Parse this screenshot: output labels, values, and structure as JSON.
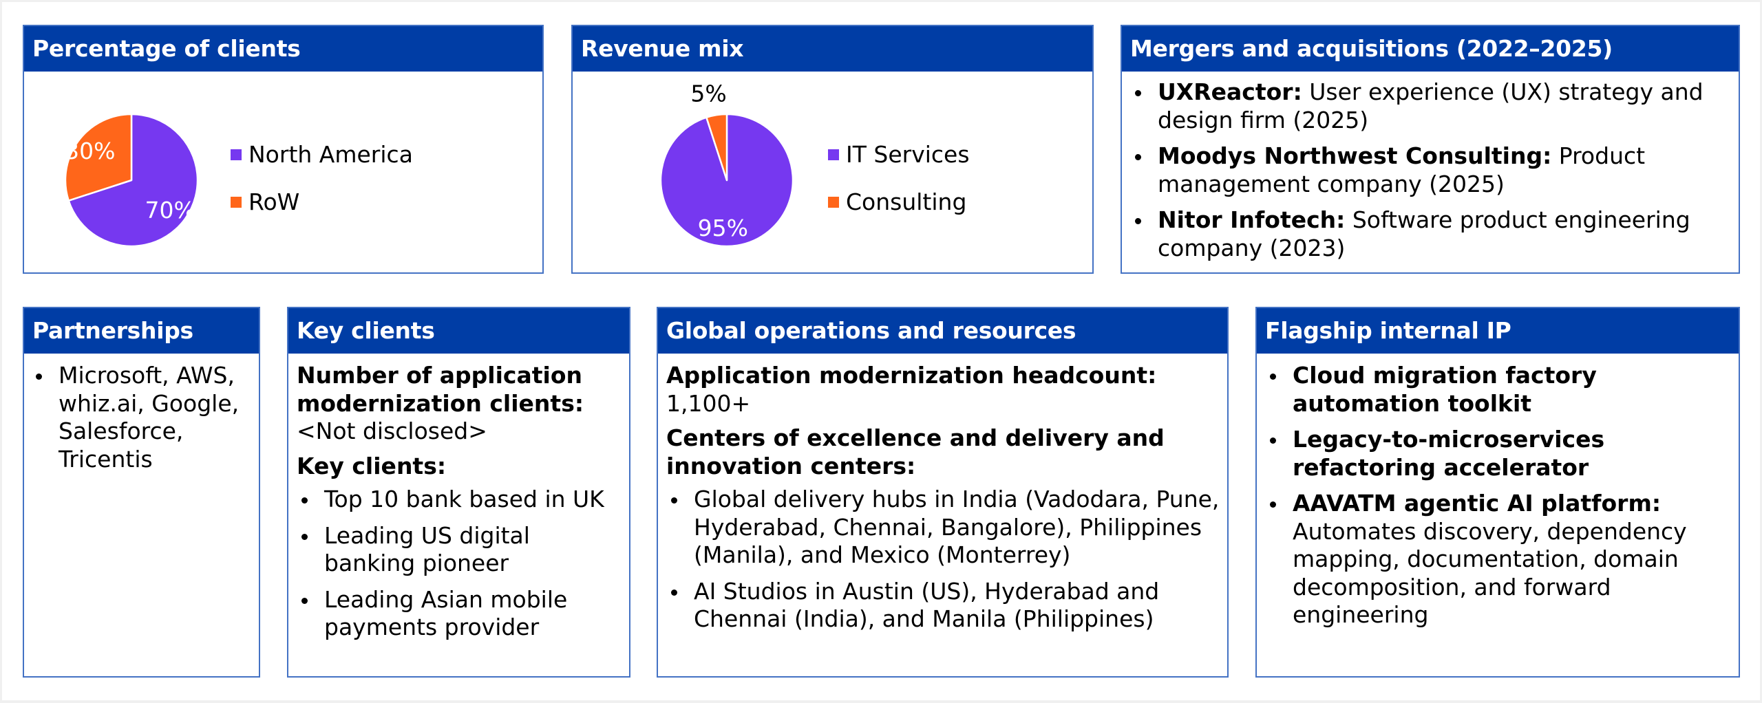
{
  "colors": {
    "header_bg": "#003DA5",
    "panel_border": "#4472C4",
    "series_primary": "#7638F0",
    "series_secondary": "#FF661A"
  },
  "panels": {
    "clients": {
      "title": "Percentage of clients"
    },
    "revenue": {
      "title": "Revenue mix"
    },
    "mna": {
      "title": "Mergers and acquisitions (2022–2025)",
      "items": [
        {
          "bold": "UXReactor:",
          "text": " User experience (UX) strategy and design firm (2025)"
        },
        {
          "bold": "Moodys Northwest Consulting:",
          "text": " Product management company (2025)"
        },
        {
          "bold": "Nitor Infotech:",
          "text": " Software product engineering company (2023)"
        }
      ]
    },
    "partnerships": {
      "title": "Partnerships",
      "items": [
        "Microsoft, AWS, whiz.ai, Google, Salesforce, Tricentis"
      ]
    },
    "key_clients": {
      "title": "Key clients",
      "count_label": "Number of application modernization clients:",
      "count_value": "<Not disclosed>",
      "list_label": "Key clients:",
      "items": [
        "Top 10 bank based in UK",
        "Leading US digital banking pioneer",
        "Leading Asian mobile payments provider"
      ]
    },
    "global_ops": {
      "title": "Global operations and resources",
      "headcount_label": "Application modernization headcount:",
      "headcount_value": "1,100+",
      "centers_label": "Centers of excellence and delivery and innovation centers:",
      "items": [
        "Global delivery hubs in India (Vadodara, Pune, Hyderabad, Chennai, Bangalore), Philippines (Manila), and Mexico (Monterrey)",
        "AI Studios in Austin (US), Hyderabad and Chennai (India), and Manila (Philippines)"
      ]
    },
    "flagship_ip": {
      "title": "Flagship internal IP",
      "items": [
        {
          "bold": "Cloud migration factory automation toolkit",
          "text": ""
        },
        {
          "bold": "Legacy-to-microservices refactoring accelerator",
          "text": ""
        },
        {
          "bold": "AAVATM agentic AI platform:",
          "text": " Automates discovery, dependency mapping, documentation, domain decomposition, and forward engineering"
        }
      ]
    }
  },
  "chart_data": [
    {
      "type": "pie",
      "title": "Percentage of clients",
      "categories": [
        "North America",
        "RoW"
      ],
      "values": [
        70,
        30
      ],
      "labels": [
        "70%",
        "30%"
      ],
      "unit": "%",
      "colors": [
        "#7638F0",
        "#FF661A"
      ],
      "legend": "right"
    },
    {
      "type": "pie",
      "title": "Revenue mix",
      "categories": [
        "IT Services",
        "Consulting"
      ],
      "values": [
        95,
        5
      ],
      "labels": [
        "95%",
        "5%"
      ],
      "unit": "%",
      "colors": [
        "#7638F0",
        "#FF661A"
      ],
      "legend": "right"
    }
  ]
}
